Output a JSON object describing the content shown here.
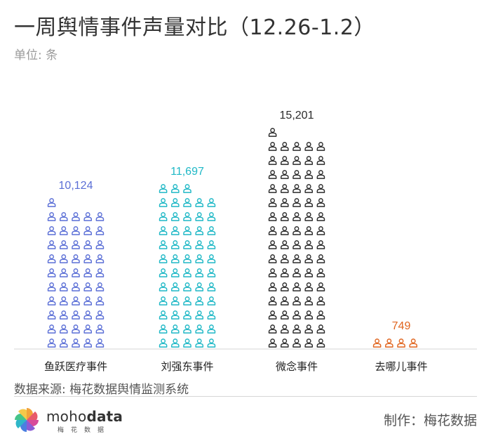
{
  "header": {
    "title": "一周舆情事件声量对比（12.26-1.2）",
    "unit": "单位: 条"
  },
  "chart_data": {
    "type": "bar",
    "categories": [
      "鱼跃医疗事件",
      "刘强东事件",
      "微念事件",
      "去哪儿事件"
    ],
    "values": [
      10124,
      11697,
      15201,
      749
    ],
    "value_labels": [
      "10,124",
      "11,697",
      "15,201",
      "749"
    ],
    "colors": [
      "#5b6fd6",
      "#1fb8c6",
      "#2b2b2b",
      "#e0651f"
    ],
    "title": "一周舆情事件声量对比（12.26-1.2）",
    "ylabel": "单位: 条",
    "xlabel": "",
    "grid": false,
    "legend": "none"
  },
  "footer": {
    "source": "数据来源: 梅花数据舆情监测系统",
    "credit": "制作：梅花数据",
    "logo_text_light": "moho",
    "logo_text_bold": "data",
    "logo_sub": "梅花数据"
  }
}
